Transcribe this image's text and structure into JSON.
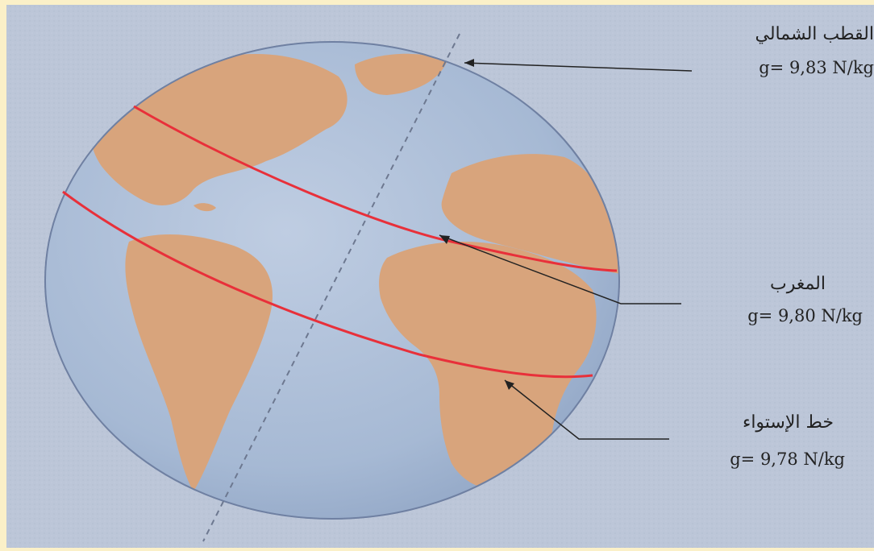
{
  "labels": {
    "north_pole": {
      "name": "القطب الشمالي",
      "value": "g= 9,83 N/kg"
    },
    "morocco": {
      "name": "المغرب",
      "value": "g= 9,80 N/kg"
    },
    "equator": {
      "name": "خط الإستواء",
      "value": "g= 9,78 N/kg"
    }
  },
  "colors": {
    "frame": "#fbf0c8",
    "background": "#bcc6d8",
    "ocean": "#a9bcd6",
    "land": "#d8a47c",
    "latitude_lines": "#e8303a",
    "axis": "#6d7890",
    "leader_lines": "#222222"
  }
}
